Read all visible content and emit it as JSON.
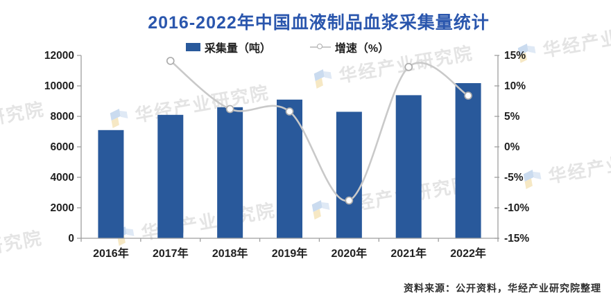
{
  "source_note": "资料来源：公开资料，华经产业研究院整理",
  "watermark_text": "华经产业研究院",
  "colors": {
    "title": "#2A56AD",
    "bar": "#29599B",
    "line": "#C9C9C9",
    "marker_fill": "#FFFFFF",
    "marker_stroke": "#ACACAC",
    "axis": "#9E9E9E",
    "tick_text": "#1F1F1F",
    "watermark": "#CFCFCF",
    "watermark_logo_blue": "#9FBFE3",
    "watermark_logo_yellow": "#EFD795",
    "footer": "#2E2E2E"
  },
  "chart_data": {
    "type": "bar",
    "title": "2016-2022年中国血液制品血浆采集量统计",
    "categories": [
      "2016年",
      "2017年",
      "2018年",
      "2019年",
      "2020年",
      "2021年",
      "2022年"
    ],
    "series": [
      {
        "name": "采集量（吨）",
        "type": "bar",
        "axis": "left",
        "color": "#29599B",
        "values": [
          7100,
          8100,
          8600,
          9100,
          8300,
          9390,
          10181
        ]
      },
      {
        "name": "增速（%）",
        "type": "line",
        "axis": "right",
        "color": "#C9C9C9",
        "smooth": true,
        "values": [
          null,
          14.1,
          6.2,
          5.8,
          -8.8,
          13.1,
          8.4
        ]
      }
    ],
    "left_axis": {
      "min": 0,
      "max": 12000,
      "step": 2000,
      "labels": [
        "0",
        "2000",
        "4000",
        "6000",
        "8000",
        "10000",
        "12000"
      ]
    },
    "right_axis": {
      "min": -15,
      "max": 15,
      "step": 5,
      "suffix": "%",
      "labels": [
        "-15%",
        "-10%",
        "-5%",
        "0%",
        "5%",
        "10%",
        "15%"
      ]
    },
    "grid": false,
    "legend_position": "top"
  }
}
